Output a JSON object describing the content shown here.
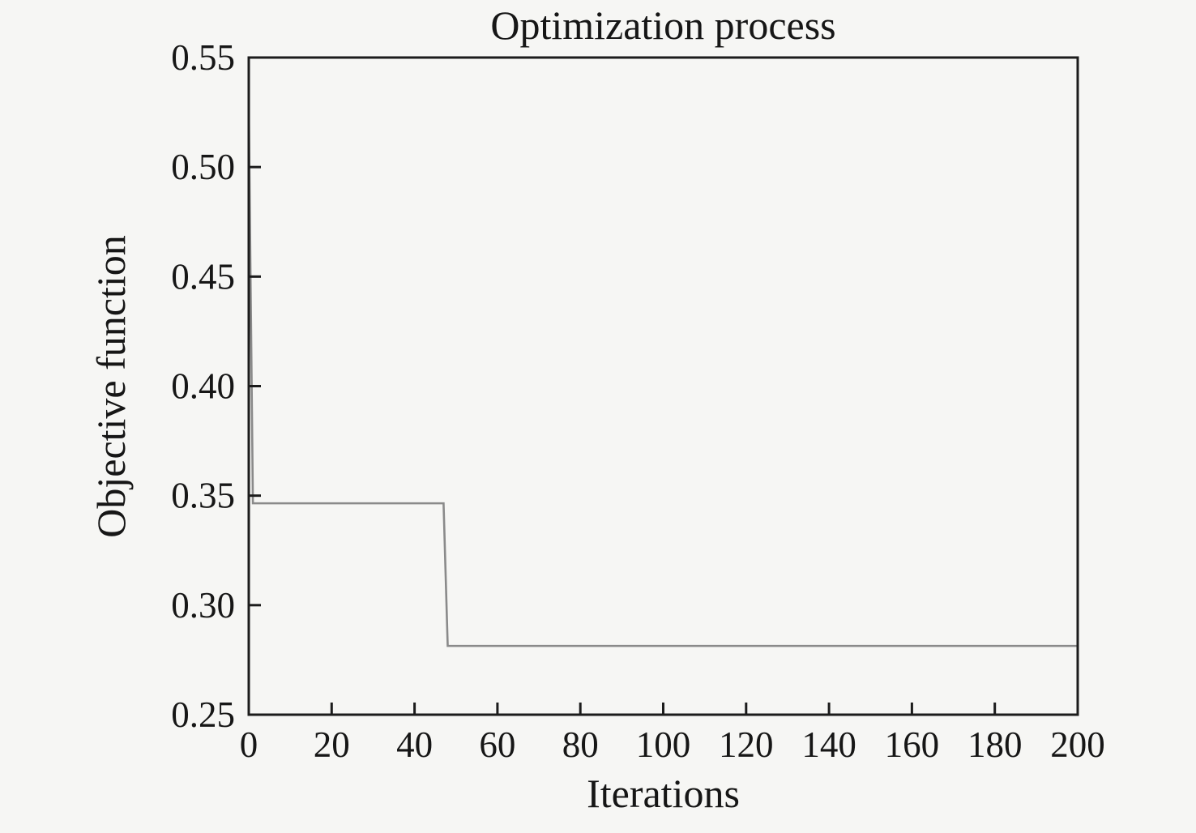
{
  "figure": {
    "background": "#f6f6f4",
    "axis_color": "#1c1c1c",
    "text_color": "#161616"
  },
  "chart_data": {
    "type": "line",
    "title": "Optimization process",
    "xlabel": "Iterations",
    "ylabel": "Objective function",
    "xlim": [
      0,
      200
    ],
    "ylim": [
      0.25,
      0.55
    ],
    "xticks": [
      0,
      20,
      40,
      60,
      80,
      100,
      120,
      140,
      160,
      180,
      200
    ],
    "xtick_labels": [
      "0",
      "20",
      "40",
      "60",
      "80",
      "100",
      "120",
      "140",
      "160",
      "180",
      "200"
    ],
    "yticks": [
      0.25,
      0.3,
      0.35,
      0.4,
      0.45,
      0.5,
      0.55
    ],
    "ytick_labels": [
      "0.25",
      "0.30",
      "0.35",
      "0.40",
      "0.45",
      "0.50",
      "0.55"
    ],
    "grid": false,
    "legend": "none",
    "line_color": "#8a8a8a",
    "series": [
      {
        "name": "objective_function",
        "x": [
          0,
          1,
          47,
          48,
          200
        ],
        "y": [
          0.527,
          0.3465,
          0.3465,
          0.2814,
          0.2814
        ]
      }
    ]
  }
}
